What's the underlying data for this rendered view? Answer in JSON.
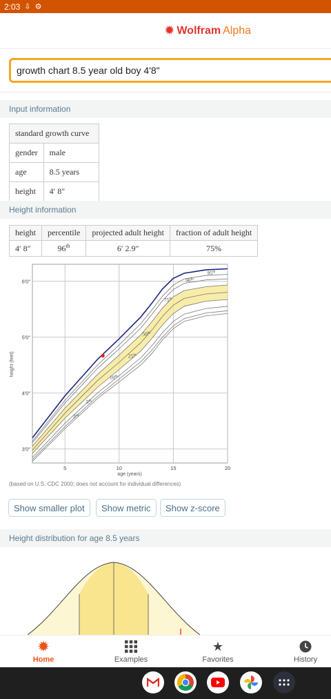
{
  "status": {
    "time": "2:03"
  },
  "brand": {
    "word1": "Wolfram",
    "word2": "Alpha"
  },
  "search": {
    "value": "growth chart 8.5 year old boy 4'8\""
  },
  "input_info": {
    "title": "Input information",
    "header": "standard growth curve",
    "rows": [
      {
        "k": "gender",
        "v": "male"
      },
      {
        "k": "age",
        "v": "8.5 years"
      },
      {
        "k": "height",
        "v": "4′ 8″"
      }
    ]
  },
  "height_info": {
    "title": "Height information",
    "cols": [
      "height",
      "percentile",
      "projected adult height",
      "fraction of adult height"
    ],
    "row": {
      "height": "4′ 8″",
      "percentile": "96",
      "percentile_sup": "th",
      "projected": "6′ 2.9″",
      "fraction": "75%"
    }
  },
  "chart_data": {
    "type": "line",
    "xlabel": "age (years)",
    "ylabel": "height (feet)",
    "xlim": [
      2,
      20
    ],
    "ylim": [
      2.75,
      6.3
    ],
    "x_ticks": [
      "5",
      "10",
      "15",
      "20"
    ],
    "y_ticks": [
      "3′0″",
      "4′0″",
      "5′0″",
      "6′0″"
    ],
    "series": [
      {
        "name": "3rd",
        "x": [
          2,
          5,
          8,
          10,
          12,
          13,
          14,
          15,
          16,
          18,
          20
        ],
        "y": [
          2.78,
          3.36,
          3.9,
          4.2,
          4.5,
          4.7,
          4.95,
          5.15,
          5.28,
          5.38,
          5.42
        ]
      },
      {
        "name": "5th",
        "x": [
          2,
          5,
          8,
          10,
          12,
          13,
          14,
          15,
          16,
          18,
          20
        ],
        "y": [
          2.81,
          3.4,
          3.94,
          4.25,
          4.56,
          4.76,
          5.0,
          5.2,
          5.33,
          5.43,
          5.47
        ]
      },
      {
        "name": "10th",
        "x": [
          2,
          5,
          8,
          10,
          12,
          13,
          14,
          15,
          16,
          18,
          20
        ],
        "y": [
          2.85,
          3.46,
          4.0,
          4.31,
          4.63,
          4.84,
          5.08,
          5.28,
          5.41,
          5.51,
          5.55
        ]
      },
      {
        "name": "25th",
        "x": [
          2,
          5,
          8,
          10,
          12,
          13,
          14,
          15,
          16,
          18,
          20
        ],
        "y": [
          2.92,
          3.55,
          4.1,
          4.42,
          4.75,
          4.97,
          5.22,
          5.42,
          5.55,
          5.64,
          5.67
        ]
      },
      {
        "name": "50th",
        "x": [
          2,
          5,
          8,
          10,
          12,
          13,
          14,
          15,
          16,
          18,
          20
        ],
        "y": [
          2.98,
          3.64,
          4.22,
          4.55,
          4.9,
          5.12,
          5.37,
          5.57,
          5.69,
          5.77,
          5.8
        ]
      },
      {
        "name": "75th",
        "x": [
          2,
          5,
          8,
          10,
          12,
          13,
          14,
          15,
          16,
          18,
          20
        ],
        "y": [
          3.05,
          3.73,
          4.33,
          4.68,
          5.04,
          5.27,
          5.52,
          5.72,
          5.83,
          5.9,
          5.93
        ]
      },
      {
        "name": "90th",
        "x": [
          2,
          5,
          8,
          10,
          12,
          13,
          14,
          15,
          16,
          18,
          20
        ],
        "y": [
          3.11,
          3.82,
          4.44,
          4.79,
          5.16,
          5.4,
          5.65,
          5.85,
          5.96,
          6.02,
          6.04
        ]
      },
      {
        "name": "95th",
        "x": [
          2,
          5,
          8,
          10,
          12,
          13,
          14,
          15,
          16,
          18,
          20
        ],
        "y": [
          3.14,
          3.87,
          4.5,
          4.86,
          5.24,
          5.48,
          5.73,
          5.93,
          6.04,
          6.1,
          6.12
        ]
      },
      {
        "name": "",
        "x": [
          2,
          5,
          8,
          10,
          12,
          13,
          14,
          15,
          16,
          18,
          20
        ],
        "y": [
          3.2,
          3.95,
          4.6,
          4.97,
          5.36,
          5.6,
          5.86,
          6.05,
          6.14,
          6.2,
          6.22
        ]
      }
    ],
    "point": {
      "x": 8.5,
      "y": 4.667
    },
    "note": "(based on U.S. CDC 2000; does not account for individual differences)"
  },
  "buttons": {
    "smaller": "Show smaller plot",
    "metric": "Show metric",
    "zscore": "Show z-score"
  },
  "dist": {
    "title": "Height distribution for age 8.5 years"
  },
  "nav": {
    "home": "Home",
    "examples": "Examples",
    "favorites": "Favorites",
    "history": "History"
  },
  "colors": {
    "accent": "#e8561a",
    "status_bar": "#d35400",
    "search_border": "#f5a623",
    "band": "#f5e58c",
    "point": "#e02020"
  }
}
